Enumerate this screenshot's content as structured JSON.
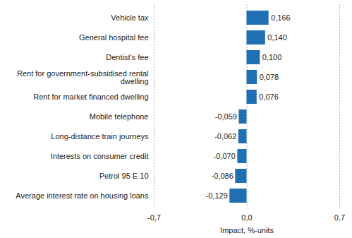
{
  "chart_data": {
    "type": "bar",
    "orientation": "horizontal",
    "x_label": "Impact, %-units",
    "categories": [
      "Vehicle tax",
      "General hospital fee",
      "Dentist's fee",
      "Rent for government-subsidised rental dwelling",
      "Rent for market financed dwelling",
      "Mobile telephone",
      "Long-distance train journeys",
      "Interests on consumer credit",
      "Petrol 95 E 10",
      "Average interest rate on housing loans"
    ],
    "values": [
      0.166,
      0.14,
      0.1,
      0.078,
      0.076,
      -0.059,
      -0.062,
      -0.07,
      -0.086,
      -0.129
    ],
    "value_labels": [
      "0,166",
      "0,140",
      "0,100",
      "0,078",
      "0,076",
      "-0,059",
      "-0,062",
      "-0,070",
      "-0,086",
      "-0,129"
    ],
    "color": "#1f6fb2",
    "xlim": [
      -0.7,
      0.7
    ],
    "xticks": [
      {
        "value": -0.7,
        "label": "-0,7"
      },
      {
        "value": 0,
        "label": "0,0"
      },
      {
        "value": 0.7,
        "label": "0,7"
      }
    ],
    "grid": true,
    "data_labels": true
  }
}
